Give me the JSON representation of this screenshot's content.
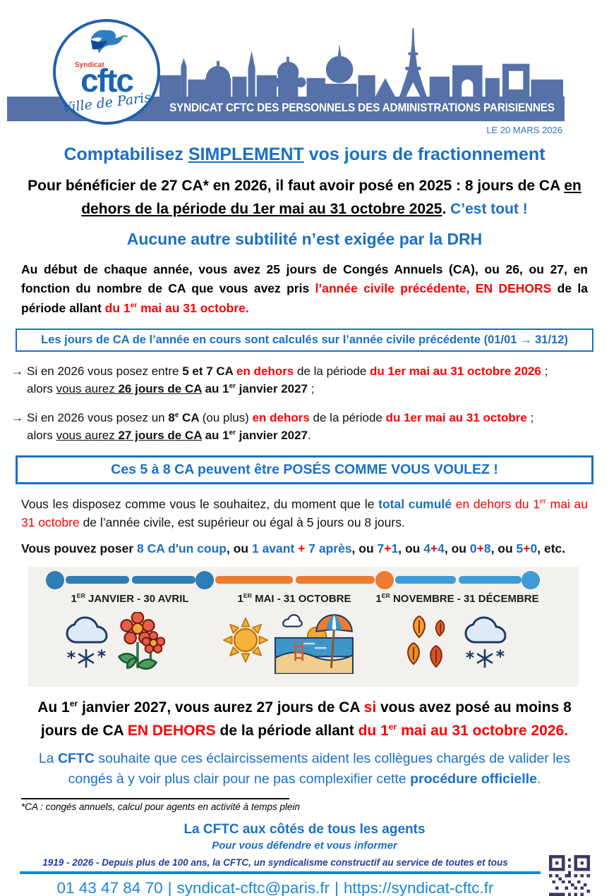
{
  "header": {
    "banner": "SYNDICAT CFTC DES PERSONNELS DES ADMINISTRATIONS PARISIENNES",
    "date": "LE 20 MARS 2026",
    "logo": {
      "top": "Syndicat",
      "acronym": "cftc",
      "bottom": "Ville de Paris"
    }
  },
  "content": {
    "title": [
      {
        "t": "Comptabilisez "
      },
      {
        "t": "SIMPLEMENT",
        "s": "u"
      },
      {
        "t": " vos jours de fractionnement"
      }
    ],
    "subtitle": [
      {
        "t": "Pour bénéficier de 27 CA* en 2026, il faut avoir posé en 2025 : 8 jours de CA "
      },
      {
        "t": "en dehors de la période du 1er mai au 31 octobre 2025",
        "s": "u"
      },
      {
        "t": ". "
      },
      {
        "t": "C’est tout !",
        "s": "blue"
      }
    ],
    "drh": "Aucune autre subtilité n’est exigée par la DRH",
    "intro": [
      {
        "t": "Au début de chaque année, vous avez 25 jours de Congés Annuels (CA), ou 26, ou 27, en fonction du nombre de CA que vous avez pris "
      },
      {
        "t": "l’année civile précédente, EN DEHORS",
        "s": "red"
      },
      {
        "t": " de la période allant "
      },
      {
        "t": "du 1",
        "s": "red"
      },
      {
        "t": "er",
        "s": "red sup"
      },
      {
        "t": " mai au 31 octobre.",
        "s": "red"
      }
    ],
    "box_rule": "Les jours de CA de l’année en cours sont calculés sur l’année civile précédente (01/01 → 31/12)",
    "bullets": [
      {
        "arrow": "→",
        "frags": [
          {
            "t": "Si en 2026 vous posez entre "
          },
          {
            "t": "5 et 7 CA ",
            "s": "b"
          },
          {
            "t": "en dehors",
            "s": "red b"
          },
          {
            "t": " de la période "
          },
          {
            "t": "du 1er mai au 31 octobre 2026",
            "s": "red b"
          },
          {
            "t": " ;"
          },
          {
            "br": true
          },
          {
            "t": "alors "
          },
          {
            "t": "vous aurez ",
            "s": "u"
          },
          {
            "t": "26 jours de CA",
            "s": "u b"
          },
          {
            "t": " au 1",
            "s": "b"
          },
          {
            "t": "er",
            "s": "b sup"
          },
          {
            "t": " janvier 2027",
            "s": "b"
          },
          {
            "t": " ;"
          }
        ]
      },
      {
        "arrow": "→",
        "frags": [
          {
            "t": "Si en 2026 vous posez un "
          },
          {
            "t": "8",
            "s": "b"
          },
          {
            "t": "e",
            "s": "b sup"
          },
          {
            "t": " CA ",
            "s": "b"
          },
          {
            "t": "(ou plus) "
          },
          {
            "t": "en dehors",
            "s": "red b"
          },
          {
            "t": " de la période "
          },
          {
            "t": "du 1er mai au 31 octobre",
            "s": "red b"
          },
          {
            "t": " ;"
          },
          {
            "br": true
          },
          {
            "t": "alors "
          },
          {
            "t": "vous aurez ",
            "s": "u"
          },
          {
            "t": "27 jours de CA",
            "s": "u b"
          },
          {
            "t": " au 1",
            "s": "b"
          },
          {
            "t": "er",
            "s": "b sup"
          },
          {
            "t": " janvier 2027",
            "s": "b"
          },
          {
            "t": "."
          }
        ]
      }
    ],
    "box_pose": "Ces 5 à 8 CA peuvent être POSÉS COMME VOUS VOULEZ !",
    "dispose": [
      {
        "t": "Vous les disposez comme vous le souhaitez, du moment que le "
      },
      {
        "t": "total cumulé",
        "s": "blue b"
      },
      {
        "t": " "
      },
      {
        "t": "en dehors du 1",
        "s": "red"
      },
      {
        "t": "er",
        "s": "red sup"
      },
      {
        "t": " mai au 31 octobre",
        "s": "red"
      },
      {
        "t": " de l’année civile, est supérieur ou égal à 5 jours ou 8 jours."
      }
    ],
    "poser": [
      {
        "t": "Vous pouvez poser "
      },
      {
        "t": "8 CA d'un coup",
        "s": "blue"
      },
      {
        "t": ", ou "
      },
      {
        "t": "1 avant ",
        "s": "blue"
      },
      {
        "t": "+",
        "s": "red"
      },
      {
        "t": " 7 après",
        "s": "blue"
      },
      {
        "t": ", ou "
      },
      {
        "t": "7",
        "s": "blue"
      },
      {
        "t": "+",
        "s": "red"
      },
      {
        "t": "1",
        "s": "blue"
      },
      {
        "t": ", ou "
      },
      {
        "t": "4",
        "s": "blue"
      },
      {
        "t": "+",
        "s": "red"
      },
      {
        "t": "4",
        "s": "blue"
      },
      {
        "t": ", ou "
      },
      {
        "t": "0",
        "s": "blue"
      },
      {
        "t": "+",
        "s": "red"
      },
      {
        "t": "8",
        "s": "blue"
      },
      {
        "t": ", ou "
      },
      {
        "t": "5",
        "s": "blue"
      },
      {
        "t": "+",
        "s": "red"
      },
      {
        "t": "0",
        "s": "blue"
      },
      {
        "t": ", etc."
      }
    ],
    "timeline": {
      "dots": [
        "#2F7CB6",
        "#2F7CB6",
        "#EE7B30",
        "#3F9BD8"
      ],
      "periods": [
        {
          "color": "#2F7CB6",
          "label": [
            {
              "t": "1"
            },
            {
              "t": "ER",
              "s": "sup"
            },
            {
              "t": " JANVIER - 30 AVRIL"
            }
          ]
        },
        {
          "color": "#EE7B30",
          "label": [
            {
              "t": "1"
            },
            {
              "t": "ER",
              "s": "sup"
            },
            {
              "t": " MAI - 31 OCTOBRE"
            }
          ]
        },
        {
          "color": "#3F9BD8",
          "label": [
            {
              "t": "1"
            },
            {
              "t": "ER",
              "s": "sup"
            },
            {
              "t": " NOVEMBRE - 31 DÉCEMBRE"
            }
          ]
        }
      ],
      "icons": [
        "snow-cloud",
        "spring-flowers",
        "sun",
        "beach-umbrella",
        "autumn-leaves",
        "snow-cloud"
      ]
    },
    "conclusion": [
      {
        "t": "Au 1"
      },
      {
        "t": "er",
        "s": "sup"
      },
      {
        "t": " janvier 2027, vous aurez 27 jours de CA "
      },
      {
        "t": "si",
        "s": "red"
      },
      {
        "t": " vous avez posé au moins 8 jours de CA "
      },
      {
        "t": "EN DEHORS",
        "s": "red"
      },
      {
        "t": " de la période allant "
      },
      {
        "t": "du 1",
        "s": "red"
      },
      {
        "t": "er",
        "s": "red sup"
      },
      {
        "t": " mai au 31 octobre 2026.",
        "s": "red"
      }
    ],
    "hope": [
      {
        "t": "La "
      },
      {
        "t": "CFTC",
        "s": "b"
      },
      {
        "t": " souhaite que ces éclaircissements aident les collègues chargés de valider les congés à y voir plus clair pour ne pas complexifier cette "
      },
      {
        "t": "procédure officielle",
        "s": "b"
      },
      {
        "t": "."
      }
    ],
    "footnote": "*CA : congés annuels, calcul pour agents en activité à temps plein"
  },
  "footer": {
    "tagline": "La CFTC aux côtés de tous les agents",
    "slogan": "Pour vous défendre et vous informer",
    "centenary": "1919 - 2026 - Depuis plus de 100 ans, la CFTC, un syndicalisme constructif au service de toutes et tous",
    "phone": "01 43 47 84 70",
    "separator": "|",
    "email": "syndicat-cftc@paris.fr",
    "website": "https://syndicat-cftc.fr"
  },
  "colors": {
    "primary_blue": "#1A6FC7",
    "red": "#FF0000",
    "banner_slate": "#5571A7",
    "footer_blue": "#1786DB",
    "centenary_navy": "#233F97",
    "qr": "#3C3768",
    "graphic_bg": "#F3F1ED"
  }
}
